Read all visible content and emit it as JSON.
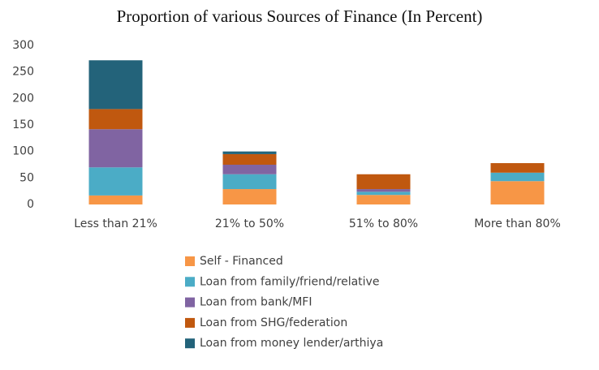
{
  "chart_data": {
    "type": "stacked_bar",
    "title": "Proportion of various Sources of Finance (In Percent)",
    "categories": [
      "Less than 21%",
      "21% to 50%",
      "51% to 80%",
      "More than 80%"
    ],
    "series": [
      {
        "name": "Self - Financed",
        "color": "#f79646",
        "values": [
          17,
          29,
          18,
          44
        ]
      },
      {
        "name": "Loan from family/friend/relative",
        "color": "#4bacc6",
        "values": [
          53,
          28,
          6,
          16
        ]
      },
      {
        "name": "Loan from bank/MFI",
        "color": "#8064a2",
        "values": [
          72,
          18,
          5,
          0
        ]
      },
      {
        "name": "Loan from SHG/federation",
        "color": "#c0580f",
        "values": [
          38,
          20,
          28,
          18
        ]
      },
      {
        "name": "Loan from money lender/arthiya",
        "color": "#23637a",
        "values": [
          92,
          5,
          0,
          0
        ]
      }
    ],
    "ylim": [
      0,
      300
    ],
    "yticks": [
      0,
      50,
      100,
      150,
      200,
      250,
      300
    ],
    "grid": false
  }
}
